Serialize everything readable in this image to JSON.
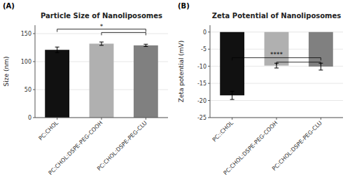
{
  "chart_data": [
    {
      "type": "bar",
      "title": "Particle Size of Nanoliposomes",
      "ylabel": "Size (nm)",
      "categories": [
        "PC:CHOL",
        "PC:CHOL:DSPE-PEG-COOH",
        "PC:CHOL:DSPE-PEG-CLU"
      ],
      "values": [
        121,
        132,
        129
      ],
      "errors": [
        5,
        3,
        2
      ],
      "colors": [
        "#111111",
        "#b0b0b0",
        "#808080"
      ],
      "ylim": [
        0,
        165
      ],
      "yticks": [
        0,
        50,
        100,
        150
      ],
      "annotations": [
        {
          "text": "(A)"
        },
        {
          "text": "*",
          "between": [
            0,
            2
          ],
          "y": 158
        },
        {
          "between": [
            1,
            2
          ],
          "y": 152
        }
      ]
    },
    {
      "type": "bar",
      "title": "Zeta Potential of Nanoliposomes",
      "ylabel": "Zeta potential (mV)",
      "categories": [
        "PC::CHOL",
        "PC:CHOL:DSPE-PEG-COOH",
        "PC:CHOL:DSPE-PEG-CLU"
      ],
      "values": [
        -18.5,
        -9.8,
        -10.1
      ],
      "errors": [
        1.2,
        0.7,
        1.0
      ],
      "colors": [
        "#111111",
        "#b0b0b0",
        "#808080"
      ],
      "ylim": [
        -25,
        2
      ],
      "yticks": [
        -25,
        -20,
        -15,
        -10,
        -5,
        0
      ],
      "annotations": [
        {
          "text": "(B)"
        },
        {
          "text": "****",
          "between": [
            0,
            2
          ],
          "y": -7.5
        },
        {
          "between": [
            1,
            2
          ],
          "y": -8.8
        }
      ]
    }
  ]
}
